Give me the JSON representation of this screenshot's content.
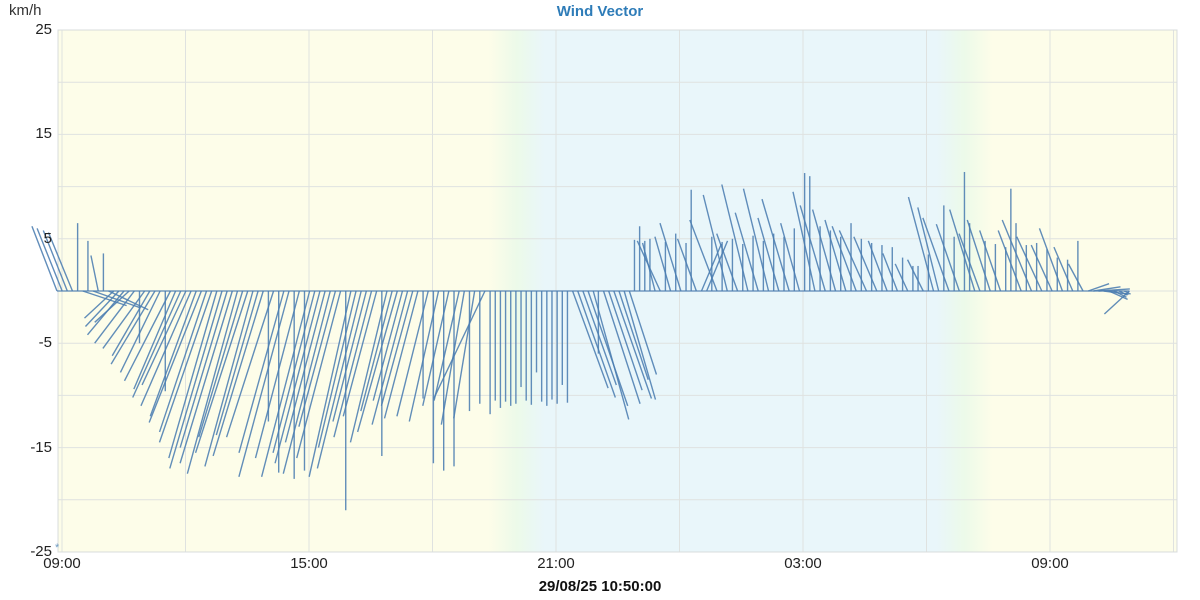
{
  "header": {
    "title": "Wind Vector",
    "ylabel": "km/h"
  },
  "footer": {
    "timestamp": "29/08/25 10:50:00"
  },
  "annotations": {
    "asterisk": "*"
  },
  "chart_data": {
    "type": "vector",
    "title": "Wind Vector",
    "ylabel": "km/h",
    "units": "km/h",
    "ylim": [
      -25,
      25
    ],
    "y_tick_labels": [
      25,
      15,
      5,
      -5,
      -15,
      -25
    ],
    "y_grid_step": 5,
    "x_tick_labels": [
      "09:00",
      "15:00",
      "21:00",
      "03:00",
      "09:00"
    ],
    "x_tick_interval_hours": 6,
    "x_grid_interval_hours": 3,
    "series_start": "28/08/25 09:00",
    "step_minutes": 7.5,
    "current_time": "29/08/25 10:50:00",
    "grid": true,
    "legend_position": "none",
    "colors": {
      "vector": "#4b7db0",
      "day_bg": "#fdfde9",
      "night_bg": "#e9f6fa",
      "twilight_bg": "#ecfae9",
      "grid": "#dfe2e0",
      "border": "#d8dcdc",
      "title": "#2e7cb8"
    },
    "band_stops": [
      [
        0.0,
        "day"
      ],
      [
        0.385,
        "day"
      ],
      [
        0.41,
        "twilight"
      ],
      [
        0.435,
        "night"
      ],
      [
        0.785,
        "night"
      ],
      [
        0.81,
        "twilight"
      ],
      [
        0.835,
        "day"
      ],
      [
        1.0,
        "day"
      ]
    ],
    "uv": [
      [
        -2.4,
        6.2
      ],
      [
        -2.4,
        6.0
      ],
      [
        -2.3,
        5.8
      ],
      [
        -2.3,
        5.6
      ],
      [
        0,
        6.5
      ],
      [
        4.2,
        -1.4
      ],
      [
        0,
        4.8
      ],
      [
        4.5,
        -1.6
      ],
      [
        -0.7,
        3.4
      ],
      [
        0,
        3.6
      ],
      [
        3.8,
        -1.8
      ],
      [
        -2.8,
        -2.6
      ],
      [
        -3.2,
        -3.4
      ],
      [
        -3.5,
        -4.2
      ],
      [
        -3.3,
        -3.0
      ],
      [
        -3.8,
        -5.0
      ],
      [
        0,
        -5.0
      ],
      [
        -4.0,
        -5.5
      ],
      [
        -3.6,
        -6.2
      ],
      [
        -4.2,
        -7.0
      ],
      [
        -3.8,
        -7.8
      ],
      [
        0,
        -9.6
      ],
      [
        -4.4,
        -8.6
      ],
      [
        -4.0,
        -9.4
      ],
      [
        -4.6,
        -10.2
      ],
      [
        -4.2,
        -9.0
      ],
      [
        -4.8,
        -11.0
      ],
      [
        -4.4,
        -12.0
      ],
      [
        -5.0,
        -12.6
      ],
      [
        -4.5,
        -13.5
      ],
      [
        -5.0,
        -14.5
      ],
      [
        -4.6,
        -16.0
      ],
      [
        -5.0,
        -17.0
      ],
      [
        -4.5,
        -15.0
      ],
      [
        -5.0,
        -16.5
      ],
      [
        -4.8,
        -17.5
      ],
      [
        -4.2,
        -14.0
      ],
      [
        -5.0,
        -15.5
      ],
      [
        -4.6,
        -16.8
      ],
      [
        -4.0,
        -13.8
      ],
      [
        -4.8,
        -15.8
      ],
      [
        0,
        -12.5
      ],
      [
        -4.5,
        -14.0
      ],
      [
        0,
        -17.4
      ],
      [
        -4.3,
        -15.5
      ],
      [
        -4.8,
        -17.8
      ],
      [
        0,
        -18.0
      ],
      [
        -4.2,
        -16.0
      ],
      [
        0,
        -17.2
      ],
      [
        -4.6,
        -17.8
      ],
      [
        -4.0,
        -15.5
      ],
      [
        -4.3,
        -16.5
      ],
      [
        -3.8,
        -14.5
      ],
      [
        -4.5,
        -17.5
      ],
      [
        -3.5,
        -13.0
      ],
      [
        -4.2,
        -16.0
      ],
      [
        0,
        -21.0
      ],
      [
        -4.0,
        -17.8
      ],
      [
        -3.6,
        -15.0
      ],
      [
        -4.2,
        -17.0
      ],
      [
        -3.2,
        -12.5
      ],
      [
        -3.6,
        -14.0
      ],
      [
        -3.2,
        -12.0
      ],
      [
        0,
        -15.8
      ],
      [
        -3.5,
        -14.5
      ],
      [
        -3.0,
        -11.5
      ],
      [
        -3.8,
        -13.5
      ],
      [
        -2.8,
        -10.5
      ],
      [
        -3.4,
        -12.8
      ],
      [
        -3.0,
        -11.0
      ],
      [
        -3.2,
        -12.2
      ],
      [
        0,
        -10.3
      ],
      [
        -3.0,
        -12.0
      ],
      [
        0,
        -16.5
      ],
      [
        -2.8,
        -12.5
      ],
      [
        0,
        -17.2
      ],
      [
        -2.5,
        -11.0
      ],
      [
        0,
        -16.8
      ],
      [
        -2.4,
        -10.5
      ],
      [
        -2.2,
        -12.8
      ],
      [
        0,
        -11.5
      ],
      [
        -2.0,
        -12.2
      ],
      [
        0,
        -10.8
      ],
      [
        -4.9,
        -10.3
      ],
      [
        0,
        -11.8
      ],
      [
        0,
        -10.5
      ],
      [
        0,
        -11.2
      ],
      [
        0,
        -10.6
      ],
      [
        0,
        -11.0
      ],
      [
        0,
        -10.8
      ],
      [
        0,
        -9.2
      ],
      [
        0,
        -10.5
      ],
      [
        0,
        -10.9
      ],
      [
        0,
        -7.8
      ],
      [
        0,
        -10.6
      ],
      [
        0,
        -11.0
      ],
      [
        0,
        -10.4
      ],
      [
        0,
        -10.8
      ],
      [
        0,
        -9.0
      ],
      [
        0,
        -10.7
      ],
      [
        3.4,
        -9.3
      ],
      [
        3.6,
        -10.2
      ],
      [
        3.2,
        -9.0
      ],
      [
        3.8,
        -11.0
      ],
      [
        3.4,
        -12.3
      ],
      [
        0,
        -6.0
      ],
      [
        3.5,
        -10.8
      ],
      [
        3.2,
        -9.5
      ],
      [
        3.6,
        -10.3
      ],
      [
        2.8,
        -8.5
      ],
      [
        3.0,
        -10.4
      ],
      [
        2.6,
        -8.0
      ],
      [
        0,
        4.9
      ],
      [
        0,
        6.2
      ],
      [
        0,
        4.8
      ],
      [
        0,
        5.0
      ],
      [
        -1.2,
        4.6
      ],
      [
        -2.2,
        4.8
      ],
      [
        0,
        4.7
      ],
      [
        -1.5,
        5.2
      ],
      [
        0,
        5.5
      ],
      [
        -2.0,
        6.5
      ],
      [
        0,
        4.6
      ],
      [
        0,
        9.7
      ],
      [
        -1.8,
        5.0
      ],
      [
        1.9,
        4.5
      ],
      [
        2.0,
        4.8
      ],
      [
        0,
        5.2
      ],
      [
        -2.6,
        6.8
      ],
      [
        0,
        4.7
      ],
      [
        -2.3,
        9.2
      ],
      [
        0,
        5.0
      ],
      [
        -2.0,
        5.5
      ],
      [
        0,
        4.5
      ],
      [
        -2.5,
        10.2
      ],
      [
        0,
        5.3
      ],
      [
        -2.2,
        7.5
      ],
      [
        0,
        4.8
      ],
      [
        -2.4,
        9.8
      ],
      [
        0,
        5.5
      ],
      [
        -2.0,
        7.0
      ],
      [
        0,
        5.2
      ],
      [
        -2.6,
        8.8
      ],
      [
        0,
        6.0
      ],
      [
        -1.8,
        6.5
      ],
      [
        0,
        11.3
      ],
      [
        0,
        11.0
      ],
      [
        -2.1,
        9.5
      ],
      [
        0,
        6.2
      ],
      [
        -2.4,
        8.2
      ],
      [
        0,
        5.8
      ],
      [
        -2.2,
        7.8
      ],
      [
        0,
        5.2
      ],
      [
        -2.0,
        6.8
      ],
      [
        0,
        6.5
      ],
      [
        -2.3,
        6.2
      ],
      [
        0,
        5.0
      ],
      [
        -2.6,
        5.8
      ],
      [
        0,
        4.6
      ],
      [
        -2.2,
        5.2
      ],
      [
        0,
        4.4
      ],
      [
        -1.8,
        4.8
      ],
      [
        0,
        4.2
      ],
      [
        -1.4,
        3.6
      ],
      [
        0,
        3.2
      ],
      [
        -1.2,
        2.6
      ],
      [
        0,
        2.4
      ],
      [
        0,
        2.4
      ],
      [
        -1.5,
        3.0
      ],
      [
        0,
        3.5
      ],
      [
        -2.4,
        9.0
      ],
      [
        -2.0,
        8.0
      ],
      [
        0,
        8.2
      ],
      [
        -2.5,
        7.0
      ],
      [
        0,
        5.2
      ],
      [
        -2.2,
        6.4
      ],
      [
        0,
        11.4
      ],
      [
        0,
        6.5
      ],
      [
        -2.4,
        7.8
      ],
      [
        -2.0,
        5.5
      ],
      [
        0,
        4.8
      ],
      [
        -2.2,
        6.8
      ],
      [
        0,
        4.5
      ],
      [
        -2.0,
        5.8
      ],
      [
        0,
        4.2
      ],
      [
        0,
        9.8
      ],
      [
        0,
        6.5
      ],
      [
        -2.2,
        5.8
      ],
      [
        0,
        4.4
      ],
      [
        -2.8,
        6.8
      ],
      [
        0,
        4.6
      ],
      [
        -2.4,
        5.2
      ],
      [
        0,
        4.0
      ],
      [
        -2.0,
        4.4
      ],
      [
        0,
        3.2
      ],
      [
        -2.2,
        6.0
      ],
      [
        0,
        3.0
      ],
      [
        -1.8,
        4.2
      ],
      [
        0,
        4.8
      ],
      [
        -1.4,
        2.6
      ],
      [
        2.0,
        0.7
      ],
      [
        2.6,
        0.4
      ],
      [
        3.0,
        0.2
      ],
      [
        2.4,
        -0.3
      ],
      [
        1.8,
        -0.8
      ],
      [
        1.2,
        -0.6
      ],
      [
        0.8,
        -0.4
      ],
      [
        0.6,
        -0.3
      ],
      [
        -2.4,
        -2.2
      ]
    ]
  }
}
